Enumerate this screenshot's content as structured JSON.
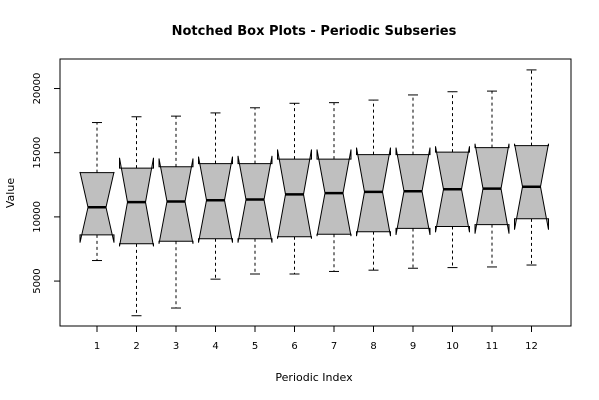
{
  "chart_data": {
    "type": "boxplot",
    "title": "Notched Box Plots - Periodic Subseries",
    "xlabel": "Periodic Index",
    "ylabel": "Value",
    "categories": [
      "1",
      "2",
      "3",
      "4",
      "5",
      "6",
      "7",
      "8",
      "9",
      "10",
      "11",
      "12"
    ],
    "y_ticks": [
      5000,
      10000,
      15000,
      20000
    ],
    "ylim": [
      1500,
      22300
    ],
    "notched": true,
    "box_fill": "#bfbfbf",
    "boxes": [
      {
        "min": 6600,
        "q1": 8600,
        "median": 10750,
        "q3": 13450,
        "max": 17350,
        "notch_low": 8000,
        "notch_high": 13500
      },
      {
        "min": 2300,
        "q1": 7900,
        "median": 11150,
        "q3": 13800,
        "max": 17800,
        "notch_low": 7700,
        "notch_high": 14600
      },
      {
        "min": 2900,
        "q1": 8100,
        "median": 11200,
        "q3": 13900,
        "max": 17850,
        "notch_low": 7900,
        "notch_high": 14550
      },
      {
        "min": 5150,
        "q1": 8300,
        "median": 11300,
        "q3": 14150,
        "max": 18100,
        "notch_low": 8000,
        "notch_high": 14700
      },
      {
        "min": 5550,
        "q1": 8300,
        "median": 11350,
        "q3": 14150,
        "max": 18500,
        "notch_low": 8000,
        "notch_high": 14750
      },
      {
        "min": 5550,
        "q1": 8450,
        "median": 11750,
        "q3": 14500,
        "max": 18850,
        "notch_low": 8300,
        "notch_high": 15250
      },
      {
        "min": 5750,
        "q1": 8650,
        "median": 11850,
        "q3": 14500,
        "max": 18900,
        "notch_low": 8500,
        "notch_high": 15250
      },
      {
        "min": 5850,
        "q1": 8850,
        "median": 11950,
        "q3": 14850,
        "max": 19100,
        "notch_low": 8500,
        "notch_high": 15400
      },
      {
        "min": 6000,
        "q1": 9100,
        "median": 12000,
        "q3": 14850,
        "max": 19500,
        "notch_low": 8600,
        "notch_high": 15400
      },
      {
        "min": 6050,
        "q1": 9250,
        "median": 12150,
        "q3": 15050,
        "max": 19750,
        "notch_low": 8800,
        "notch_high": 15500
      },
      {
        "min": 6100,
        "q1": 9400,
        "median": 12200,
        "q3": 15400,
        "max": 19800,
        "notch_low": 8700,
        "notch_high": 15700
      },
      {
        "min": 6250,
        "q1": 9850,
        "median": 12350,
        "q3": 15550,
        "max": 21450,
        "notch_low": 9000,
        "notch_high": 15700
      }
    ]
  }
}
